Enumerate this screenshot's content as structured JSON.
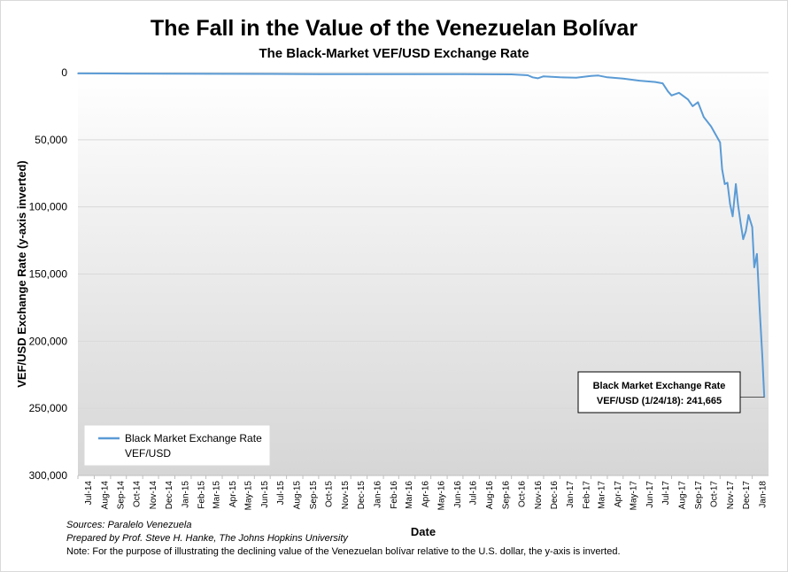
{
  "chart_data": {
    "type": "line",
    "title": "The Fall in the Value of the Venezuelan Bolívar",
    "subtitle": "The Black-Market VEF/USD Exchange Rate",
    "xlabel": "Date",
    "ylabel": "VEF/USD Exchange  Rate (y-axis inverted)",
    "y_inverted": true,
    "ylim": [
      0,
      300000
    ],
    "y_ticks": [
      0,
      50000,
      100000,
      150000,
      200000,
      250000,
      300000
    ],
    "y_tick_labels": [
      "0",
      "50,000",
      "100,000",
      "150,000",
      "200,000",
      "250,000",
      "300,000"
    ],
    "x_tick_labels": [
      "Jul-14",
      "Aug-14",
      "Sep-14",
      "Oct-14",
      "Nov-14",
      "Dec-14",
      "Jan-15",
      "Feb-15",
      "Mar-15",
      "Apr-15",
      "May-15",
      "Jun-15",
      "Jul-15",
      "Aug-15",
      "Sep-15",
      "Oct-15",
      "Nov-15",
      "Dec-15",
      "Jan-16",
      "Feb-16",
      "Mar-16",
      "Apr-16",
      "May-16",
      "Jun-16",
      "Jul-16",
      "Aug-16",
      "Sep-16",
      "Oct-16",
      "Nov-16",
      "Dec-16",
      "Jan-17",
      "Feb-17",
      "Mar-17",
      "Apr-17",
      "May-17",
      "Jun-17",
      "Jul-17",
      "Aug-17",
      "Sep-17",
      "Oct-17",
      "Nov-17",
      "Dec-17",
      "Jan-18"
    ],
    "grid": "horizontal",
    "series": [
      {
        "name": "Black Market Exchange Rate VEF/USD",
        "color": "#5b9bd5",
        "x": [
          "2014-07-01",
          "2014-10-01",
          "2015-01-01",
          "2015-04-01",
          "2015-07-01",
          "2015-10-01",
          "2016-01-01",
          "2016-04-01",
          "2016-07-01",
          "2016-10-01",
          "2016-11-01",
          "2016-11-10",
          "2016-11-20",
          "2016-12-01",
          "2017-01-01",
          "2017-02-01",
          "2017-03-01",
          "2017-03-15",
          "2017-04-01",
          "2017-05-01",
          "2017-06-01",
          "2017-07-01",
          "2017-07-15",
          "2017-07-25",
          "2017-08-01",
          "2017-08-15",
          "2017-09-01",
          "2017-09-10",
          "2017-09-20",
          "2017-10-01",
          "2017-10-15",
          "2017-11-01",
          "2017-11-05",
          "2017-11-10",
          "2017-11-15",
          "2017-11-20",
          "2017-11-25",
          "2017-12-01",
          "2017-12-05",
          "2017-12-10",
          "2017-12-15",
          "2017-12-20",
          "2017-12-25",
          "2018-01-01",
          "2018-01-05",
          "2018-01-10",
          "2018-01-15",
          "2018-01-20",
          "2018-01-24"
        ],
        "values": [
          600,
          700,
          800,
          900,
          1000,
          1100,
          1200,
          1200,
          1200,
          1300,
          2000,
          3500,
          4200,
          2800,
          3500,
          3800,
          2500,
          2200,
          3500,
          4500,
          6000,
          7000,
          8000,
          14000,
          17000,
          15000,
          20000,
          25000,
          22000,
          33000,
          40000,
          52000,
          72000,
          83000,
          82000,
          98000,
          107000,
          83000,
          98000,
          112000,
          124000,
          118000,
          106000,
          115000,
          145000,
          135000,
          175000,
          210000,
          241665
        ]
      }
    ],
    "legend": {
      "position": "bottom-left",
      "line1": "Black Market Exchange Rate",
      "line2": "VEF/USD"
    },
    "annotation": {
      "line1": "Black Market Exchange Rate",
      "line2": "VEF/USD (1/24/18): 241,665",
      "value": 241665
    }
  },
  "notes": {
    "source": "Sources: Paralelo Venezuela",
    "prepared": "Prepared by Prof. Steve H. Hanke, The Johns Hopkins University",
    "note": "Note: For the purpose of illustrating the declining value of the Venezuelan bolívar relative to the U.S. dollar, the y-axis is inverted."
  }
}
